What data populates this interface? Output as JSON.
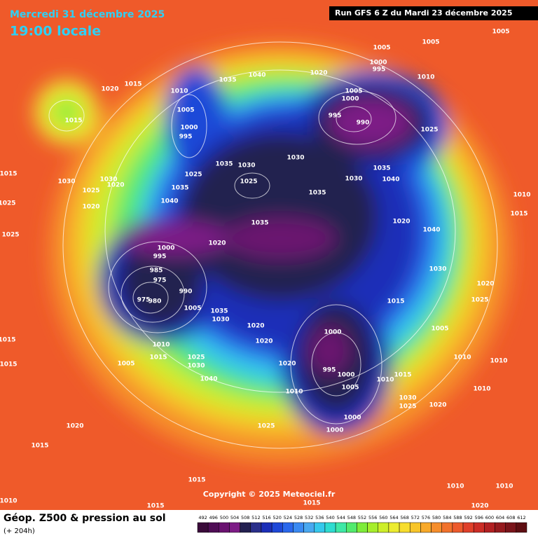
{
  "header": {
    "date": "Mercredi 31 décembre 2025",
    "time": "19:00 locale",
    "run": "Run GFS 6 Z du Mardi 23 décembre 2025"
  },
  "copyright": "Copyright © 2025 Meteociel.fr",
  "footer": {
    "title": "Géop. Z500 & pression au sol",
    "lead": "(+ 204h)"
  },
  "scale": {
    "values": [
      492,
      496,
      500,
      504,
      508,
      512,
      516,
      520,
      524,
      528,
      532,
      536,
      540,
      544,
      548,
      552,
      556,
      560,
      564,
      568,
      572,
      576,
      580,
      584,
      588,
      592,
      596,
      600,
      604,
      608,
      612
    ],
    "colors": [
      "#3a0b3a",
      "#4f0d55",
      "#6a1270",
      "#7d1c86",
      "#232050",
      "#2a2f8a",
      "#1c2fb8",
      "#1e48d8",
      "#2a68ec",
      "#3a8af2",
      "#49a8f0",
      "#36c8ec",
      "#2edcd0",
      "#3ee8a6",
      "#52ea6e",
      "#7eec3a",
      "#a6ee2c",
      "#cdee2a",
      "#ecec30",
      "#f7dd2e",
      "#f8c52a",
      "#f8a92a",
      "#f68e2c",
      "#f2722c",
      "#ed5a2c",
      "#e0402a",
      "#cc2d26",
      "#b22022",
      "#961a1e",
      "#7a141a",
      "#5e0e12"
    ]
  },
  "isobar_labels": [
    1015,
    1020,
    1015,
    1010,
    1005,
    1000,
    995,
    1035,
    1040,
    1020,
    1005,
    1000,
    995,
    990,
    1000,
    995,
    1005,
    1005,
    1005,
    1010,
    1025,
    1030,
    1035,
    1030,
    1025,
    1025,
    1035,
    1040,
    1030,
    1035,
    1040,
    1035,
    1035,
    1020,
    1040,
    1010,
    1015,
    1020,
    1000,
    995,
    985,
    975,
    990,
    980,
    975,
    1005,
    1035,
    1030,
    1020,
    1030,
    1020,
    1015,
    1025,
    1020,
    1000,
    1005,
    995,
    1000,
    1010,
    1015,
    1005,
    1025,
    1030,
    1040,
    1020,
    1005,
    1010,
    1015,
    1010,
    1030,
    1025,
    1020,
    1025,
    1000,
    1000,
    1020,
    1015,
    1015,
    1010,
    1015,
    1015,
    1010,
    1010,
    1020,
    1010,
    1010,
    1010,
    1015,
    1025,
    1025,
    1015,
    1015,
    1030,
    1025,
    1020,
    1030,
    1020
  ]
}
